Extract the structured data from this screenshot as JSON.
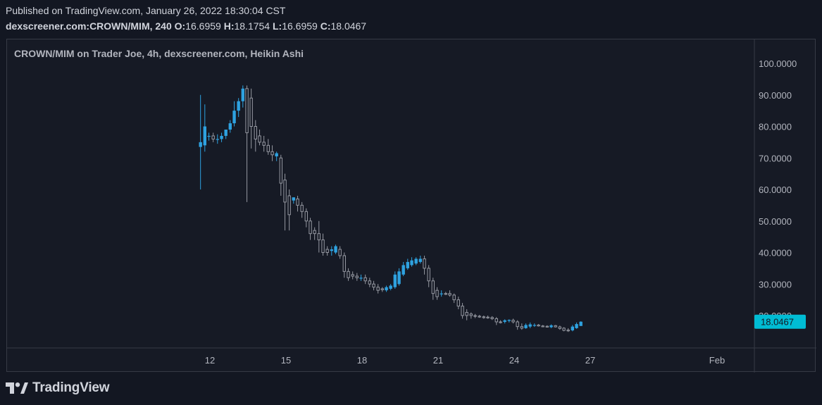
{
  "header": {
    "published_line": "Published on TradingView.com, January 26, 2022 18:30:04 CST",
    "symbol_interval": "dexscreener.com:CROWN/MIM, 240",
    "o_label": "O:",
    "o_value": "16.6959",
    "h_label": "H:",
    "h_value": "18.1754",
    "l_label": "L:",
    "l_value": "16.6959",
    "c_label": "C:",
    "c_value": "18.0467"
  },
  "logo": {
    "text": "TradingView",
    "icon": "tradingview-logo-icon"
  },
  "colors": {
    "background": "#131722",
    "up": "#2ea2e0",
    "down_outline": "#9598a1",
    "price_label_bg": "#00bcd4"
  },
  "chart_data": {
    "type": "candlestick",
    "subtype": "Heikin Ashi",
    "title": "CROWN/MIM on Trader Joe, 4h, dexscreener.com, Heikin Ashi",
    "y_ticks": [
      "100.0000",
      "90.0000",
      "80.0000",
      "70.0000",
      "60.0000",
      "50.0000",
      "40.0000",
      "30.0000",
      "20.0000"
    ],
    "ylim": [
      10.5,
      107
    ],
    "x_ticks": [
      {
        "label": "12",
        "day": 12
      },
      {
        "label": "15",
        "day": 15
      },
      {
        "label": "18",
        "day": 18
      },
      {
        "label": "21",
        "day": 21
      },
      {
        "label": "24",
        "day": 24
      },
      {
        "label": "27",
        "day": 27
      },
      {
        "label": "Feb",
        "day": 32
      }
    ],
    "xlim": [
      9.7,
      33.5
    ],
    "last_price": "18.0467",
    "last_price_value": 18.0467,
    "grid": false,
    "candles": [
      {
        "t": 11.63,
        "o": 73.5,
        "h": 90,
        "l": 60,
        "c": 75
      },
      {
        "t": 11.8,
        "o": 74,
        "h": 87,
        "l": 72,
        "c": 80
      },
      {
        "t": 11.96,
        "o": 77,
        "h": 78,
        "l": 75.5,
        "c": 77
      },
      {
        "t": 12.13,
        "o": 77,
        "h": 78,
        "l": 75,
        "c": 76
      },
      {
        "t": 12.3,
        "o": 76,
        "h": 77.5,
        "l": 74.5,
        "c": 76
      },
      {
        "t": 12.46,
        "o": 76,
        "h": 78,
        "l": 75,
        "c": 77
      },
      {
        "t": 12.63,
        "o": 77,
        "h": 79,
        "l": 76,
        "c": 79
      },
      {
        "t": 12.8,
        "o": 79,
        "h": 82,
        "l": 78,
        "c": 81
      },
      {
        "t": 12.96,
        "o": 81,
        "h": 88,
        "l": 80,
        "c": 85
      },
      {
        "t": 13.13,
        "o": 85,
        "h": 89,
        "l": 83,
        "c": 88
      },
      {
        "t": 13.3,
        "o": 88,
        "h": 93,
        "l": 86,
        "c": 92
      },
      {
        "t": 13.46,
        "o": 92,
        "h": 93,
        "l": 56,
        "c": 78
      },
      {
        "t": 13.63,
        "o": 89,
        "h": 92,
        "l": 73,
        "c": 80
      },
      {
        "t": 13.8,
        "o": 80,
        "h": 82,
        "l": 72,
        "c": 76
      },
      {
        "t": 13.96,
        "o": 77,
        "h": 79,
        "l": 74,
        "c": 75
      },
      {
        "t": 14.13,
        "o": 75,
        "h": 77,
        "l": 72,
        "c": 74
      },
      {
        "t": 14.3,
        "o": 74,
        "h": 76,
        "l": 71,
        "c": 72
      },
      {
        "t": 14.46,
        "o": 72,
        "h": 74,
        "l": 69,
        "c": 71
      },
      {
        "t": 14.63,
        "o": 70.5,
        "h": 72,
        "l": 69,
        "c": 71.5
      },
      {
        "t": 14.8,
        "o": 70,
        "h": 71,
        "l": 58,
        "c": 62
      },
      {
        "t": 14.96,
        "o": 63,
        "h": 65,
        "l": 47,
        "c": 56
      },
      {
        "t": 15.13,
        "o": 58,
        "h": 60,
        "l": 47,
        "c": 52
      },
      {
        "t": 15.3,
        "o": 56.5,
        "h": 57.5,
        "l": 55.5,
        "c": 57.5
      },
      {
        "t": 15.46,
        "o": 57,
        "h": 58,
        "l": 53,
        "c": 55
      },
      {
        "t": 15.63,
        "o": 55,
        "h": 56,
        "l": 51,
        "c": 53
      },
      {
        "t": 15.8,
        "o": 53,
        "h": 54,
        "l": 48,
        "c": 50
      },
      {
        "t": 15.96,
        "o": 50,
        "h": 51,
        "l": 44,
        "c": 46
      },
      {
        "t": 16.13,
        "o": 47,
        "h": 48,
        "l": 44,
        "c": 46
      },
      {
        "t": 16.3,
        "o": 46,
        "h": 50,
        "l": 40,
        "c": 44
      },
      {
        "t": 16.46,
        "o": 44,
        "h": 46,
        "l": 39,
        "c": 40
      },
      {
        "t": 16.63,
        "o": 41,
        "h": 42,
        "l": 39,
        "c": 40
      },
      {
        "t": 16.8,
        "o": 40.5,
        "h": 42,
        "l": 39,
        "c": 41
      },
      {
        "t": 16.96,
        "o": 40,
        "h": 42.5,
        "l": 39.5,
        "c": 42
      },
      {
        "t": 17.13,
        "o": 41,
        "h": 42,
        "l": 38,
        "c": 39
      },
      {
        "t": 17.3,
        "o": 39,
        "h": 40,
        "l": 32,
        "c": 34
      },
      {
        "t": 17.46,
        "o": 34,
        "h": 35,
        "l": 31,
        "c": 32
      },
      {
        "t": 17.63,
        "o": 33,
        "h": 34,
        "l": 31.5,
        "c": 32.5
      },
      {
        "t": 17.8,
        "o": 32.5,
        "h": 33.5,
        "l": 31,
        "c": 32
      },
      {
        "t": 17.96,
        "o": 32,
        "h": 33,
        "l": 31,
        "c": 32
      },
      {
        "t": 18.13,
        "o": 32,
        "h": 33,
        "l": 30,
        "c": 31
      },
      {
        "t": 18.3,
        "o": 31,
        "h": 32,
        "l": 29,
        "c": 30
      },
      {
        "t": 18.46,
        "o": 30,
        "h": 31,
        "l": 28,
        "c": 29
      },
      {
        "t": 18.63,
        "o": 29,
        "h": 30,
        "l": 27,
        "c": 28
      },
      {
        "t": 18.8,
        "o": 28.5,
        "h": 29,
        "l": 27.5,
        "c": 28.2
      },
      {
        "t": 18.96,
        "o": 28,
        "h": 29.5,
        "l": 27.5,
        "c": 29
      },
      {
        "t": 19.13,
        "o": 28.5,
        "h": 30,
        "l": 28,
        "c": 29.5
      },
      {
        "t": 19.3,
        "o": 29,
        "h": 34,
        "l": 28.5,
        "c": 33
      },
      {
        "t": 19.46,
        "o": 30,
        "h": 35,
        "l": 29.5,
        "c": 34
      },
      {
        "t": 19.63,
        "o": 33,
        "h": 37,
        "l": 32.5,
        "c": 36
      },
      {
        "t": 19.8,
        "o": 35,
        "h": 38,
        "l": 34.5,
        "c": 37
      },
      {
        "t": 19.96,
        "o": 36,
        "h": 38.5,
        "l": 35.5,
        "c": 37.5
      },
      {
        "t": 20.13,
        "o": 36.5,
        "h": 38.5,
        "l": 36,
        "c": 38
      },
      {
        "t": 20.3,
        "o": 37,
        "h": 39,
        "l": 36.5,
        "c": 38
      },
      {
        "t": 20.46,
        "o": 38,
        "h": 39,
        "l": 33,
        "c": 35
      },
      {
        "t": 20.63,
        "o": 35,
        "h": 36,
        "l": 29,
        "c": 31
      },
      {
        "t": 20.8,
        "o": 31,
        "h": 32,
        "l": 25,
        "c": 27
      },
      {
        "t": 20.96,
        "o": 28,
        "h": 29,
        "l": 25,
        "c": 26
      },
      {
        "t": 21.13,
        "o": 27,
        "h": 28,
        "l": 26,
        "c": 27
      },
      {
        "t": 21.3,
        "o": 27,
        "h": 27.5,
        "l": 26.5,
        "c": 26.8
      },
      {
        "t": 21.46,
        "o": 27,
        "h": 28,
        "l": 26,
        "c": 26.5
      },
      {
        "t": 21.63,
        "o": 26.5,
        "h": 27,
        "l": 24,
        "c": 25
      },
      {
        "t": 21.8,
        "o": 25,
        "h": 26,
        "l": 22,
        "c": 23
      },
      {
        "t": 21.96,
        "o": 23,
        "h": 24,
        "l": 19,
        "c": 20
      },
      {
        "t": 22.13,
        "o": 21,
        "h": 22,
        "l": 18.5,
        "c": 20
      },
      {
        "t": 22.3,
        "o": 20.5,
        "h": 21,
        "l": 19,
        "c": 20
      },
      {
        "t": 22.46,
        "o": 20,
        "h": 20.5,
        "l": 19.2,
        "c": 19.8
      },
      {
        "t": 22.63,
        "o": 19.8,
        "h": 20.2,
        "l": 19.3,
        "c": 19.6
      },
      {
        "t": 22.8,
        "o": 19.6,
        "h": 20,
        "l": 19,
        "c": 19.4
      },
      {
        "t": 22.96,
        "o": 19.5,
        "h": 20,
        "l": 19,
        "c": 19.4
      },
      {
        "t": 23.13,
        "o": 19.4,
        "h": 19.8,
        "l": 18.6,
        "c": 19
      },
      {
        "t": 23.3,
        "o": 19,
        "h": 19.5,
        "l": 17,
        "c": 18
      },
      {
        "t": 23.46,
        "o": 18,
        "h": 18.5,
        "l": 17.5,
        "c": 17.8
      },
      {
        "t": 23.63,
        "o": 18,
        "h": 18.8,
        "l": 17.5,
        "c": 18.5
      },
      {
        "t": 23.8,
        "o": 18.3,
        "h": 18.8,
        "l": 17.8,
        "c": 18.6
      },
      {
        "t": 23.96,
        "o": 18.5,
        "h": 19,
        "l": 17.5,
        "c": 18
      },
      {
        "t": 24.13,
        "o": 18,
        "h": 18.5,
        "l": 15.5,
        "c": 16.5
      },
      {
        "t": 24.3,
        "o": 16.5,
        "h": 17.5,
        "l": 15.5,
        "c": 16
      },
      {
        "t": 24.46,
        "o": 16,
        "h": 17.5,
        "l": 15.8,
        "c": 17
      },
      {
        "t": 24.63,
        "o": 16.5,
        "h": 17.8,
        "l": 16,
        "c": 17.2
      },
      {
        "t": 24.8,
        "o": 16.8,
        "h": 17.5,
        "l": 16.4,
        "c": 17
      },
      {
        "t": 24.96,
        "o": 17,
        "h": 17.3,
        "l": 16.5,
        "c": 16.7
      },
      {
        "t": 25.13,
        "o": 16.7,
        "h": 17,
        "l": 16.3,
        "c": 16.6
      },
      {
        "t": 25.3,
        "o": 16.6,
        "h": 16.9,
        "l": 16.2,
        "c": 16.4
      },
      {
        "t": 25.46,
        "o": 16.3,
        "h": 17.2,
        "l": 16,
        "c": 16.9
      },
      {
        "t": 25.63,
        "o": 16.8,
        "h": 17,
        "l": 16.2,
        "c": 16.4
      },
      {
        "t": 25.8,
        "o": 16.4,
        "h": 16.8,
        "l": 15.5,
        "c": 15.9
      },
      {
        "t": 25.96,
        "o": 16,
        "h": 16.3,
        "l": 15,
        "c": 15.3
      },
      {
        "t": 26.13,
        "o": 15.4,
        "h": 16,
        "l": 14.8,
        "c": 15.2
      },
      {
        "t": 26.3,
        "o": 15.3,
        "h": 17,
        "l": 15,
        "c": 16.5
      },
      {
        "t": 26.46,
        "o": 16,
        "h": 17.8,
        "l": 15.8,
        "c": 17.3
      },
      {
        "t": 26.63,
        "o": 16.6959,
        "h": 18.1754,
        "l": 16.6959,
        "c": 18.0467
      }
    ]
  }
}
